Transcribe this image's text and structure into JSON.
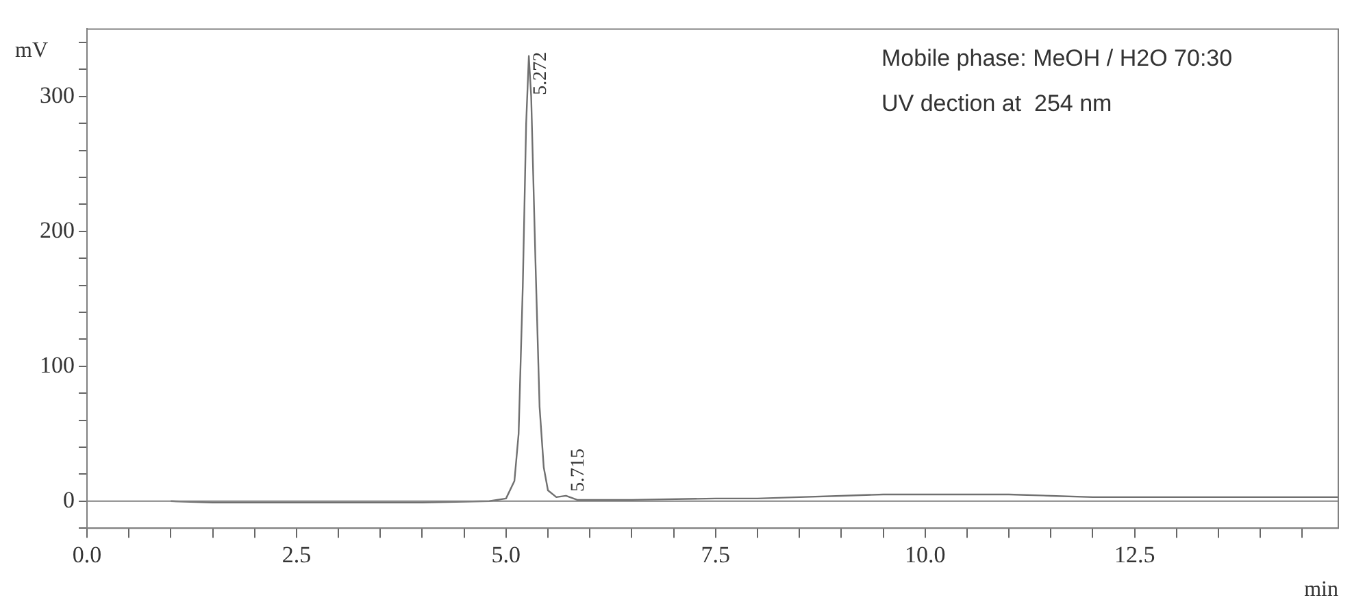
{
  "chart_data": {
    "type": "line",
    "xlabel": "min",
    "ylabel": "mV",
    "marker": "none",
    "grid": false,
    "xlim": [
      0,
      14.93
    ],
    "ylim": [
      -20,
      350
    ],
    "xticks": [
      {
        "value": 0,
        "label": "0.0"
      },
      {
        "value": 0.5,
        "label": null
      },
      {
        "value": 1,
        "label": null
      },
      {
        "value": 1.5,
        "label": null
      },
      {
        "value": 2,
        "label": null
      },
      {
        "value": 2.5,
        "label": "2.5"
      },
      {
        "value": 3,
        "label": null
      },
      {
        "value": 3.5,
        "label": null
      },
      {
        "value": 4,
        "label": null
      },
      {
        "value": 4.5,
        "label": null
      },
      {
        "value": 5,
        "label": "5.0"
      },
      {
        "value": 5.5,
        "label": null
      },
      {
        "value": 6,
        "label": null
      },
      {
        "value": 6.5,
        "label": null
      },
      {
        "value": 7,
        "label": null
      },
      {
        "value": 7.5,
        "label": "7.5"
      },
      {
        "value": 8,
        "label": null
      },
      {
        "value": 8.5,
        "label": null
      },
      {
        "value": 9,
        "label": null
      },
      {
        "value": 9.5,
        "label": null
      },
      {
        "value": 10,
        "label": "10.0"
      },
      {
        "value": 10.5,
        "label": null
      },
      {
        "value": 11,
        "label": null
      },
      {
        "value": 11.5,
        "label": null
      },
      {
        "value": 12,
        "label": null
      },
      {
        "value": 12.5,
        "label": "12.5"
      },
      {
        "value": 13,
        "label": null
      },
      {
        "value": 13.5,
        "label": null
      },
      {
        "value": 14,
        "label": null
      },
      {
        "value": 14.5,
        "label": null
      }
    ],
    "yticks": [
      {
        "value": -20,
        "label": null
      },
      0,
      {
        "value": 20,
        "label": null
      },
      {
        "value": 40,
        "label": null
      },
      {
        "value": 60,
        "label": null
      },
      {
        "value": 80,
        "label": null
      },
      100,
      {
        "value": 120,
        "label": null
      },
      {
        "value": 140,
        "label": null
      },
      {
        "value": 160,
        "label": null
      },
      {
        "value": 180,
        "label": null
      },
      200,
      {
        "value": 220,
        "label": null
      },
      {
        "value": 240,
        "label": null
      },
      {
        "value": 260,
        "label": null
      },
      {
        "value": 280,
        "label": null
      },
      300,
      {
        "value": 320,
        "label": null
      },
      {
        "value": 340,
        "label": null
      }
    ],
    "ref_lines": [
      {
        "axis": "y",
        "value": 0,
        "color": "#808080"
      }
    ],
    "series": [
      {
        "color": "#707070",
        "x": [
          1.0,
          1.5,
          2.5,
          4.0,
          4.8,
          5.0,
          5.1,
          5.15,
          5.2,
          5.24,
          5.272,
          5.3,
          5.35,
          5.4,
          5.45,
          5.5,
          5.6,
          5.715,
          5.85,
          6.5,
          7.5,
          8.0,
          8.5,
          9.0,
          9.5,
          10.0,
          10.5,
          11.0,
          11.5,
          12.0,
          13.0,
          14.93
        ],
        "values": [
          0,
          -1,
          -1,
          -1,
          0,
          2,
          15,
          50,
          160,
          280,
          330,
          300,
          180,
          70,
          25,
          8,
          3,
          4,
          1,
          1,
          2,
          2,
          3,
          4,
          5,
          5,
          5,
          5,
          4,
          3,
          3,
          3
        ]
      }
    ],
    "annotations": [
      {
        "text": "5.272",
        "x": 5.272,
        "y": 330
      },
      {
        "text": "5.715",
        "x": 5.715,
        "y": 4
      },
      "Mobile phase: MeOH / H2O 70:30",
      "UV dection at  254 nm"
    ]
  }
}
